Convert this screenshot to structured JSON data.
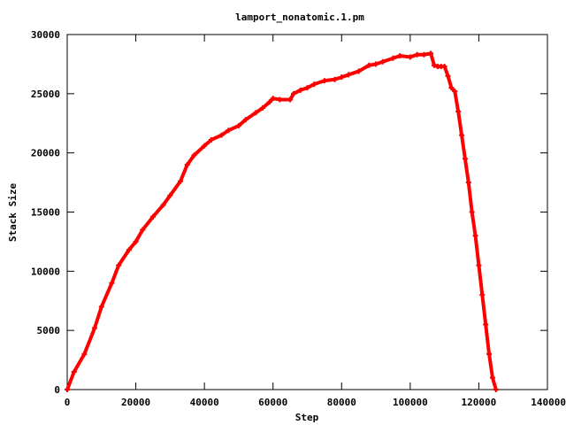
{
  "chart_data": {
    "type": "scatter",
    "title": "lamport_nonatomic.1.pm",
    "xlabel": "Step",
    "ylabel": "Stack Size",
    "xlim": [
      0,
      140000
    ],
    "ylim": [
      0,
      30000
    ],
    "xticks": [
      0,
      20000,
      40000,
      60000,
      80000,
      100000,
      120000,
      140000
    ],
    "yticks": [
      0,
      5000,
      10000,
      15000,
      20000,
      25000,
      30000
    ],
    "grid": false,
    "legend": "none",
    "marker_color": "#ff0000",
    "series": [
      {
        "x": [
          0,
          2000,
          5000,
          8000,
          10000,
          13000,
          15000,
          18000,
          20000,
          22000,
          25000,
          28000,
          30000,
          33000,
          35000,
          37000,
          40000,
          42000,
          45000,
          47000,
          50000,
          52000,
          55000,
          57000,
          59000,
          60000,
          62000,
          65000,
          66000,
          68000,
          70000,
          72000,
          75000,
          78000,
          80000,
          82000,
          85000,
          88000,
          90000,
          92000,
          95000,
          97000,
          100000,
          102000,
          104000,
          106000,
          107000,
          108000,
          109000,
          110000,
          111000,
          112000,
          113000,
          114000,
          115000,
          116000,
          117000,
          118000,
          119000,
          120000,
          121000,
          122000,
          123000,
          124000,
          125000
        ],
        "y": [
          0,
          1500,
          3000,
          5200,
          7000,
          9000,
          10500,
          11800,
          12500,
          13500,
          14600,
          15600,
          16400,
          17600,
          19000,
          19800,
          20600,
          21100,
          21500,
          21900,
          22300,
          22800,
          23400,
          23800,
          24300,
          24600,
          24500,
          24500,
          25000,
          25300,
          25500,
          25800,
          26100,
          26200,
          26400,
          26600,
          26900,
          27400,
          27500,
          27700,
          28000,
          28200,
          28100,
          28300,
          28300,
          28400,
          27400,
          27300,
          27300,
          27300,
          26500,
          25500,
          25200,
          23500,
          21500,
          19500,
          17500,
          15000,
          13000,
          10500,
          8000,
          5500,
          3000,
          1000,
          0
        ]
      }
    ]
  }
}
